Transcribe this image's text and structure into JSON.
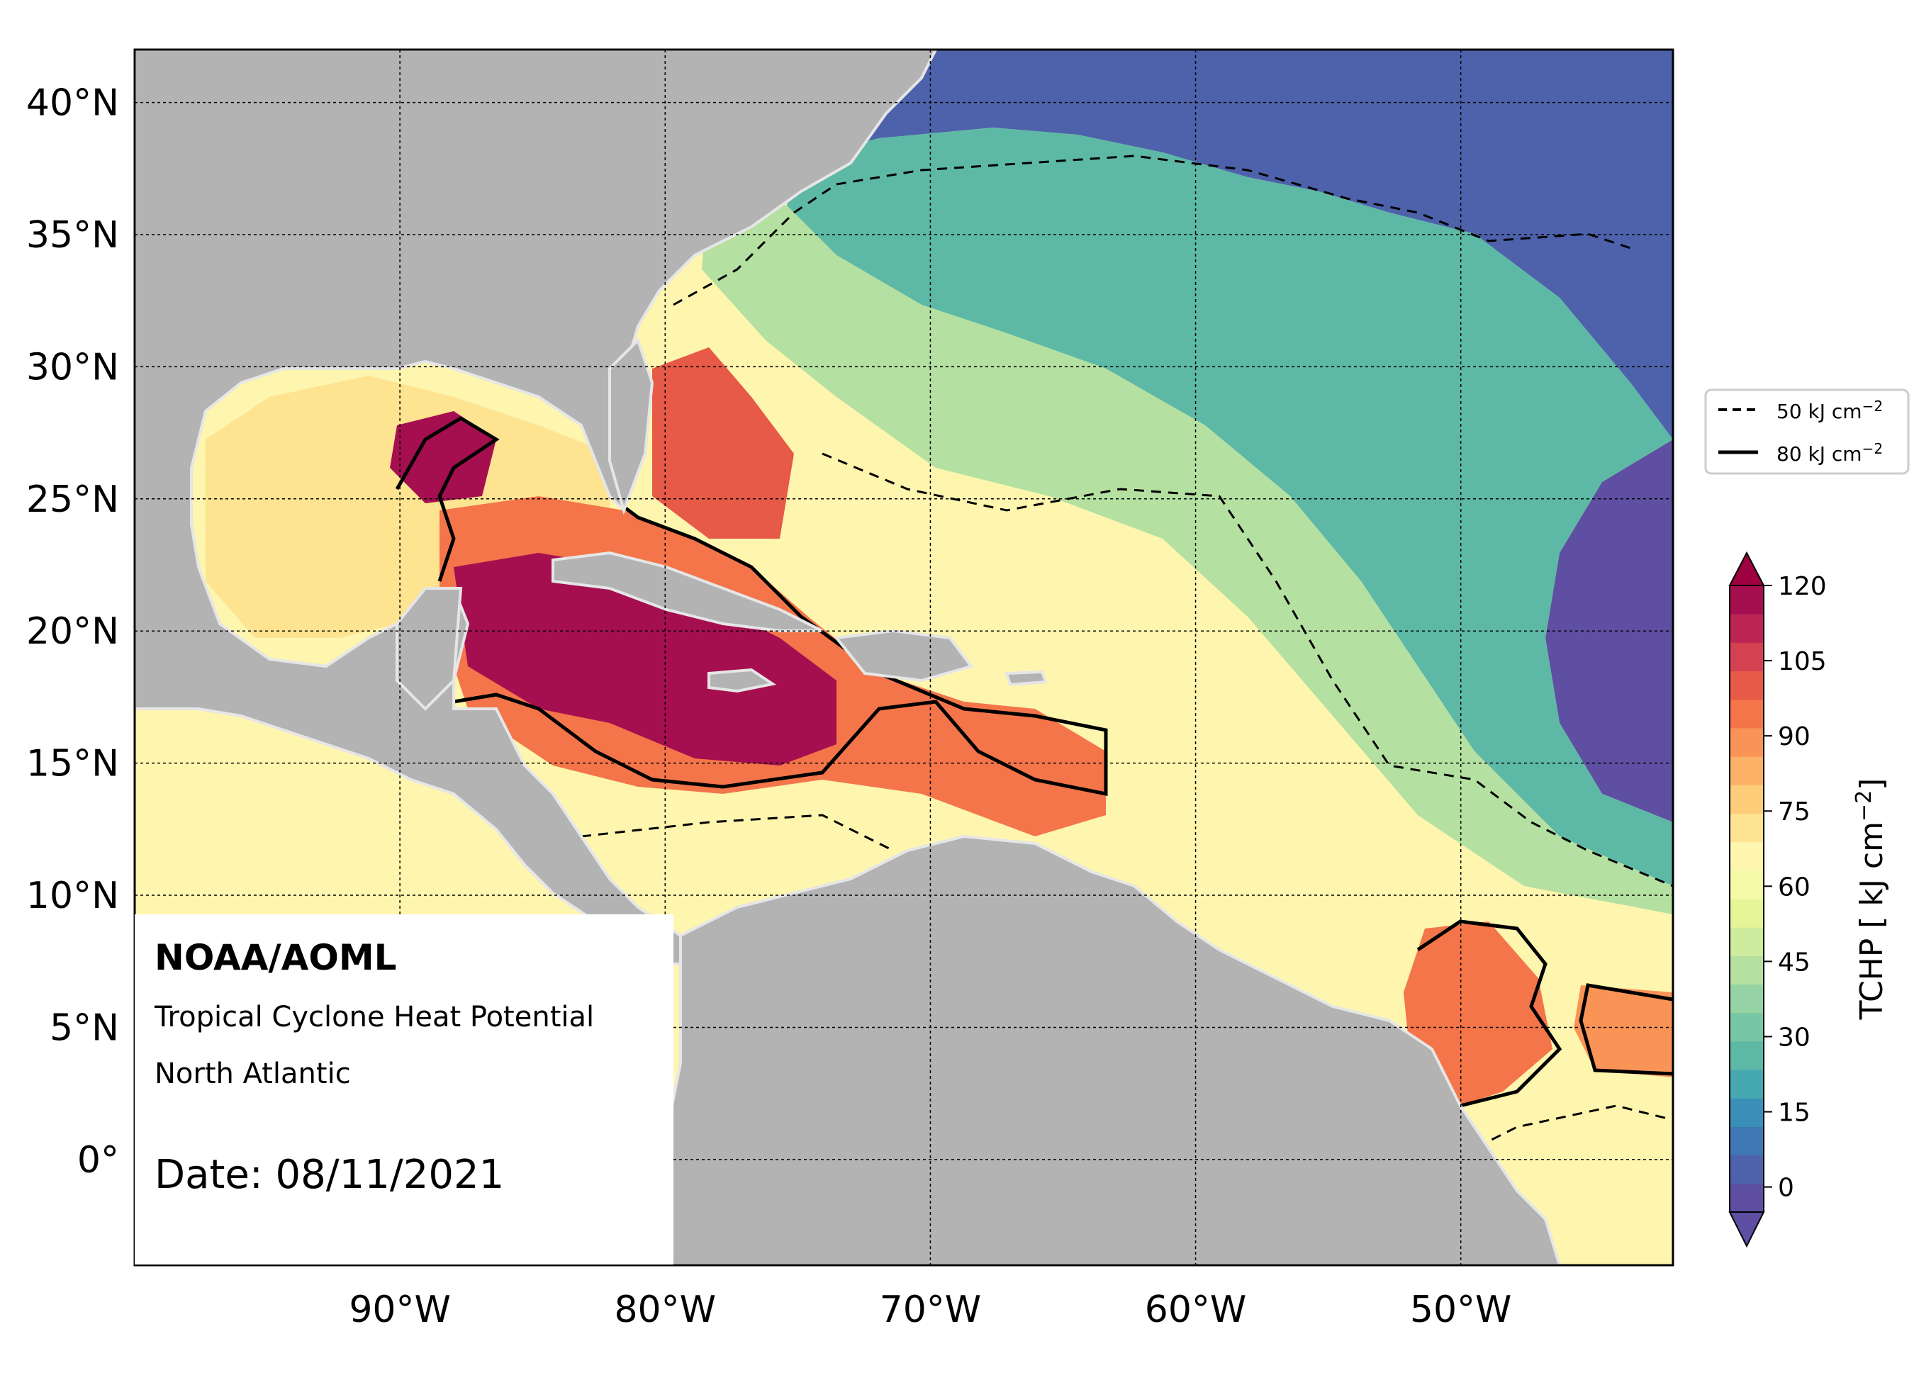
{
  "map": {
    "extent": {
      "lon_min": -100,
      "lon_max": -42,
      "lat_min": -4,
      "lat_max": 42
    },
    "lat_ticks": [
      {
        "value": 40,
        "label": "40°N"
      },
      {
        "value": 35,
        "label": "35°N"
      },
      {
        "value": 30,
        "label": "30°N"
      },
      {
        "value": 25,
        "label": "25°N"
      },
      {
        "value": 20,
        "label": "20°N"
      },
      {
        "value": 15,
        "label": "15°N"
      },
      {
        "value": 10,
        "label": "10°N"
      },
      {
        "value": 5,
        "label": "5°N"
      },
      {
        "value": 0,
        "label": "0°"
      }
    ],
    "lon_ticks": [
      {
        "value": -90,
        "label": "90°W"
      },
      {
        "value": -80,
        "label": "80°W"
      },
      {
        "value": -70,
        "label": "70°W"
      },
      {
        "value": -60,
        "label": "60°W"
      },
      {
        "value": -50,
        "label": "50°W"
      }
    ],
    "grid": true,
    "land_color": "#b3b3b3",
    "border_color": "#e6e6e6"
  },
  "info_box": {
    "org": "NOAA/AOML",
    "product": "Tropical Cyclone Heat Potential",
    "region": "North Atlantic",
    "date": "Date: 08/11/2021"
  },
  "legend": {
    "items": [
      {
        "label": "50 kJ cm",
        "sup": "−2",
        "style": "dashed"
      },
      {
        "label": "80 kJ cm",
        "sup": "−2",
        "style": "solid"
      }
    ]
  },
  "colorbar": {
    "label": "TCHP [ kJ cm",
    "label_sup": "−2",
    "label_end": "]",
    "min": -5,
    "max": 120,
    "ticks": [
      "0",
      "15",
      "30",
      "45",
      "60",
      "75",
      "90",
      "105",
      "120"
    ],
    "tick_values": [
      0,
      15,
      30,
      45,
      60,
      75,
      90,
      105,
      120
    ],
    "extend": "both",
    "colors": [
      "#5e4fa2",
      "#4d62ab",
      "#3f78b4",
      "#3a8fb8",
      "#46a8b0",
      "#5db9a6",
      "#77c6a4",
      "#96d3a4",
      "#b4e0a1",
      "#cfeb9d",
      "#e6f598",
      "#f4f9a8",
      "#fef5af",
      "#fee391",
      "#fdcd79",
      "#fcb266",
      "#f99456",
      "#f4754a",
      "#e65a47",
      "#d44150",
      "#bd2654",
      "#a50f4f"
    ]
  }
}
